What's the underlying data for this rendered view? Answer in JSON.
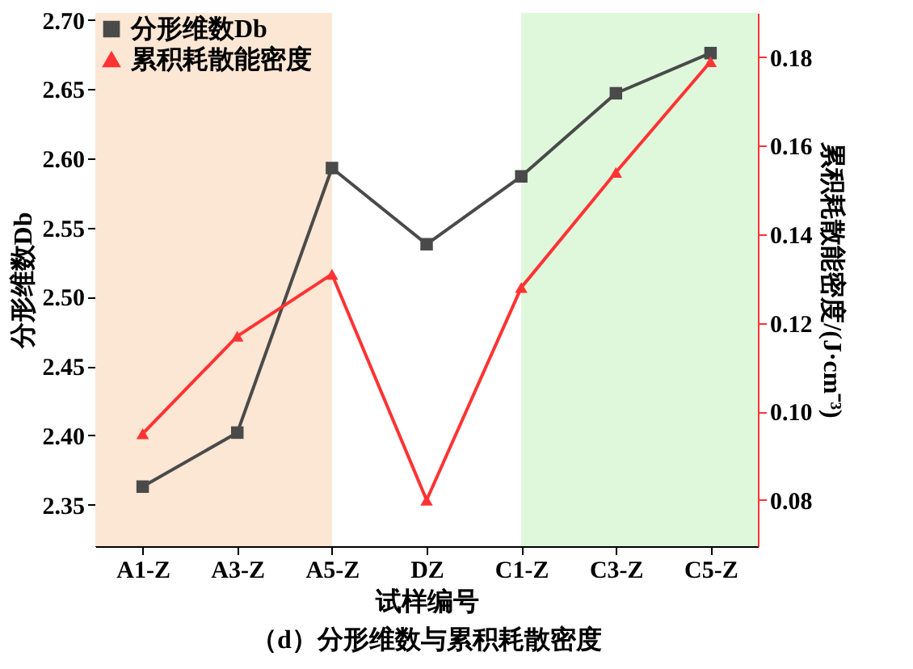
{
  "chart_data": {
    "type": "line",
    "xlabel": "试样编号",
    "ylabel": "分形维数Db",
    "y2label": "累积耗散能密度/(J·cm⁻³)",
    "categories": [
      "A1-Z",
      "A3-Z",
      "A5-Z",
      "DZ",
      "C1-Z",
      "C3-Z",
      "C5-Z"
    ],
    "series": [
      {
        "name": "分形维数Db",
        "color": "#4a4a4a",
        "marker": "square",
        "values": [
          2.363,
          2.402,
          2.593,
          2.538,
          2.587,
          2.647,
          2.676
        ]
      },
      {
        "name": "累积耗散能密度",
        "color": "#ff3333",
        "marker": "triangle",
        "axis": "y2",
        "values": [
          0.095,
          0.117,
          0.131,
          0.08,
          0.128,
          0.154,
          0.179
        ]
      }
    ],
    "ylim": [
      2.32,
      2.705
    ],
    "yticks": [
      2.35,
      {
        "value": 2.4,
        "label": "2.40"
      },
      2.45,
      {
        "value": 2.5,
        "label": "2.50"
      },
      2.55,
      {
        "value": 2.6,
        "label": "2.60"
      },
      2.65,
      {
        "value": 2.7,
        "label": "2.70"
      }
    ],
    "y2lim": [
      0.0696,
      0.19
    ],
    "y2ticks": [
      0.08,
      {
        "value": 0.1,
        "label": "0.10"
      },
      0.12,
      0.14,
      0.16,
      0.18
    ],
    "bands": [
      {
        "axis": "x",
        "from": "A1-Z",
        "to": "A5-Z",
        "color": "#fce6d4"
      },
      {
        "axis": "x",
        "from": "C1-Z",
        "to": "C5-Z",
        "color": "#dff8dc"
      }
    ],
    "legend": "top left",
    "grid": false,
    "annotations": [
      "（d）分形维数与累积耗散密度"
    ]
  }
}
